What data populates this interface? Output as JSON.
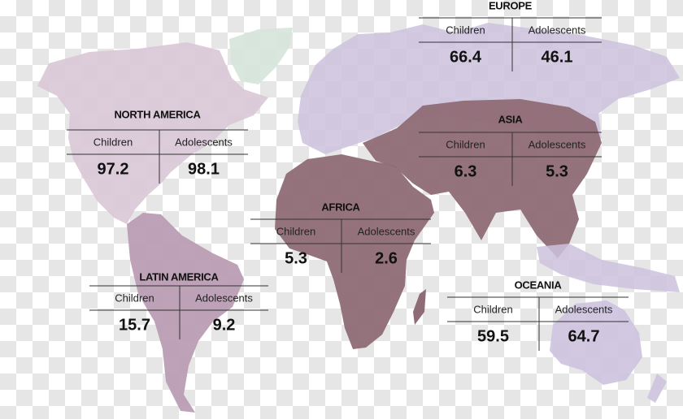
{
  "columns": [
    "Children",
    "Adolescents"
  ],
  "regions": [
    {
      "name": "EUROPE",
      "children": 66.4,
      "adolescents": 46.1
    },
    {
      "name": "NORTH AMERICA",
      "children": 97.2,
      "adolescents": 98.1
    },
    {
      "name": "ASIA",
      "children": 6.3,
      "adolescents": 5.3
    },
    {
      "name": "AFRICA",
      "children": 5.3,
      "adolescents": 2.6
    },
    {
      "name": "LATIN AMERICA",
      "children": 15.7,
      "adolescents": 9.2
    },
    {
      "name": "OCEANIA",
      "children": 59.5,
      "adolescents": 64.7
    }
  ]
}
